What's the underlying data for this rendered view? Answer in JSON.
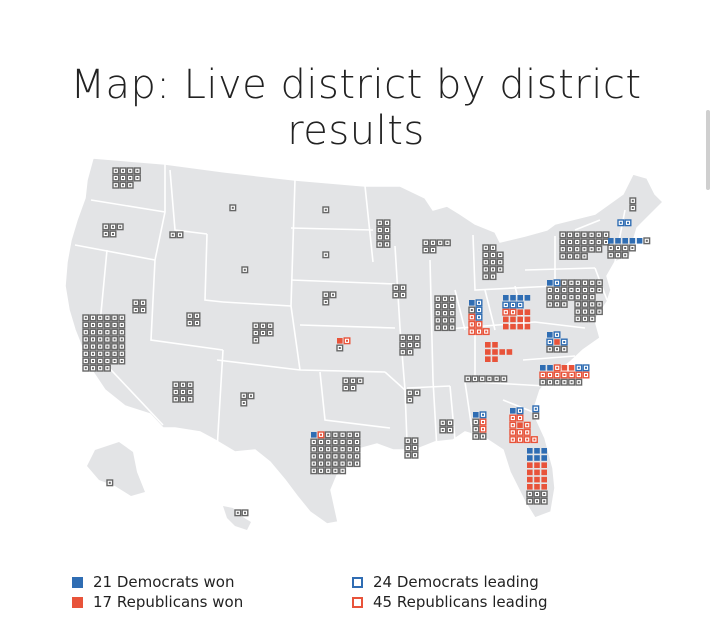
{
  "title": "Map: Live district by district results",
  "legend": {
    "dem_won": "21 Democrats won",
    "rep_won": "17 Republicans won",
    "dem_leading": "24 Democrats leading",
    "rep_leading": "45 Republicans leading"
  },
  "colors": {
    "dem": "#2f6db3",
    "rep": "#e8533a",
    "pending": "#666666",
    "land": "#e3e4e6",
    "border": "#ffffff"
  }
}
